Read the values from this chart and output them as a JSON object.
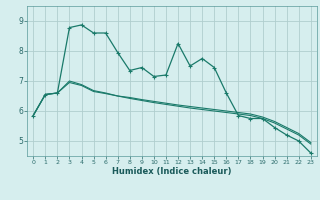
{
  "xlabel": "Humidex (Indice chaleur)",
  "background_color": "#d6eeee",
  "grid_color": "#b0cece",
  "line_color": "#1a7a6a",
  "xlim": [
    -0.5,
    23.5
  ],
  "ylim": [
    4.5,
    9.5
  ],
  "yticks": [
    5,
    6,
    7,
    8,
    9
  ],
  "xticks": [
    0,
    1,
    2,
    3,
    4,
    5,
    6,
    7,
    8,
    9,
    10,
    11,
    12,
    13,
    14,
    15,
    16,
    17,
    18,
    19,
    20,
    21,
    22,
    23
  ],
  "series1_x": [
    0,
    1,
    2,
    3,
    4,
    5,
    6,
    7,
    8,
    9,
    10,
    11,
    12,
    13,
    14,
    15,
    16,
    17,
    18,
    19,
    20,
    21,
    22,
    23
  ],
  "series1_y": [
    5.85,
    6.55,
    6.6,
    8.78,
    8.87,
    8.6,
    8.6,
    7.95,
    7.35,
    7.45,
    7.15,
    7.2,
    8.25,
    7.5,
    7.75,
    7.45,
    6.6,
    5.85,
    5.75,
    5.75,
    5.45,
    5.2,
    5.0,
    4.6
  ],
  "series2_x": [
    0,
    1,
    2,
    3,
    4,
    5,
    6,
    7,
    8,
    9,
    10,
    11,
    12,
    13,
    14,
    15,
    16,
    17,
    18,
    19,
    20,
    21,
    22,
    23
  ],
  "series2_y": [
    5.85,
    6.55,
    6.6,
    6.95,
    6.85,
    6.65,
    6.58,
    6.5,
    6.45,
    6.38,
    6.32,
    6.26,
    6.2,
    6.15,
    6.1,
    6.05,
    6.0,
    5.95,
    5.9,
    5.8,
    5.65,
    5.45,
    5.25,
    4.95
  ],
  "series3_x": [
    0,
    1,
    2,
    3,
    4,
    5,
    6,
    7,
    8,
    9,
    10,
    11,
    12,
    13,
    14,
    15,
    16,
    17,
    18,
    19,
    20,
    21,
    22,
    23
  ],
  "series3_y": [
    5.85,
    6.55,
    6.6,
    7.0,
    6.88,
    6.68,
    6.6,
    6.5,
    6.42,
    6.35,
    6.28,
    6.22,
    6.16,
    6.1,
    6.05,
    6.0,
    5.95,
    5.9,
    5.85,
    5.75,
    5.6,
    5.4,
    5.2,
    4.9
  ]
}
